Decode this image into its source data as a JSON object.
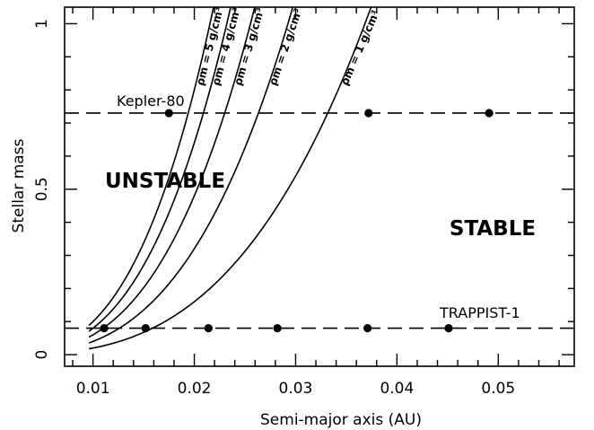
{
  "chart_data": {
    "type": "line",
    "xlabel": "Semi-major axis (AU)",
    "ylabel": "Stellar mass",
    "xlim": [
      0.0072,
      0.0575
    ],
    "ylim": [
      -0.035,
      1.05
    ],
    "xticks": [
      0.01,
      0.02,
      0.03,
      0.04,
      0.05
    ],
    "xtick_labels": [
      "0.01",
      "0.02",
      "0.03",
      "0.04",
      "0.05"
    ],
    "yticks": [
      0,
      0.5,
      1
    ],
    "ytick_labels": [
      "0",
      "0.5",
      "1"
    ],
    "grid": false,
    "region_labels": [
      "UNSTABLE",
      "STABLE"
    ],
    "curves": [
      {
        "label": "ρm = 5 g/cm³",
        "rho": 5
      },
      {
        "label": "ρm = 4 g/cm³",
        "rho": 4
      },
      {
        "label": "ρm = 3 g/cm³",
        "rho": 3
      },
      {
        "label": "ρm = 2 g/cm³",
        "rho": 2
      },
      {
        "label": "ρm = 1 g/cm³",
        "rho": 1
      }
    ],
    "curve_exponent": 3,
    "curve_coefficient": 0.8,
    "systems": [
      {
        "name": "Kepler-80",
        "stellar_mass": 0.73,
        "planets_x": [
          0.0175,
          0.0372,
          0.0491
        ]
      },
      {
        "name": "TRAPPIST-1",
        "stellar_mass": 0.08,
        "planets_x": [
          0.0111,
          0.0152,
          0.0214,
          0.0282,
          0.0371,
          0.0451
        ]
      }
    ]
  }
}
